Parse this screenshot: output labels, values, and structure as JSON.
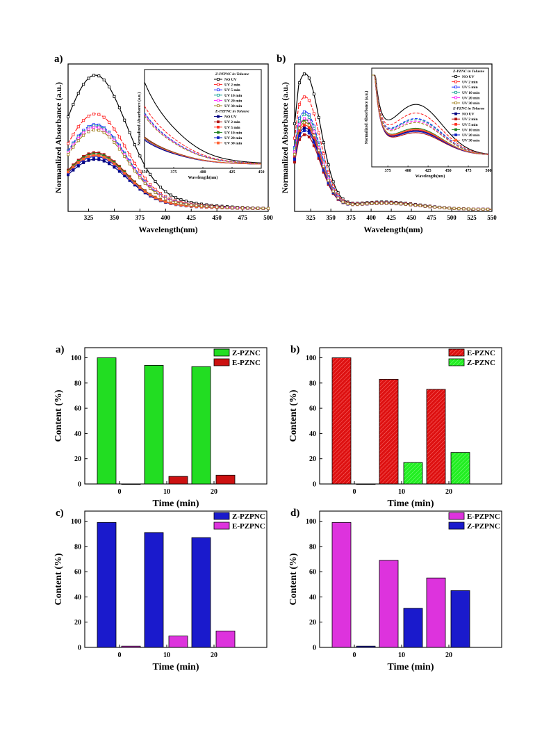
{
  "spectra_common": {
    "ylabel": "Normanlized Absorbance (a.u.)",
    "xlabel": "Wavelength(nm)",
    "inset_xlabel": "Wavelength(nm)",
    "inset_ylabel": "Normalized Absorbance (a.u.)",
    "legend_labels": [
      "NO UV",
      "UV 2 min",
      "UV 5 min",
      "UV 10 min",
      "UV 20 min",
      "UV 30 min"
    ],
    "z_colors": [
      "#000000",
      "#ff2020",
      "#2030ff",
      "#10a090",
      "#ff20ff",
      "#a08020"
    ],
    "e_colors": [
      "#000080",
      "#b01010",
      "#ff3020",
      "#208020",
      "#1020c0",
      "#ff6030"
    ]
  },
  "spectra_a": {
    "panel": "a)",
    "legend_z_title": "Z-PZPNC in Toluene",
    "legend_e_title": "E-PZPNC in Toluene",
    "x_ticks": [
      "325",
      "350",
      "375",
      "400",
      "425",
      "450",
      "475",
      "500"
    ],
    "inset_x_ticks": [
      "350",
      "375",
      "400",
      "425",
      "450"
    ]
  },
  "spectra_b": {
    "panel": "b)",
    "legend_z_title": "Z-PZNC in Toluene",
    "legend_e_title": "E-PZNC in Toluene",
    "x_ticks": [
      "325",
      "350",
      "375",
      "400",
      "425",
      "450",
      "475",
      "500",
      "525",
      "550"
    ],
    "inset_x_ticks": [
      "375",
      "400",
      "425",
      "450",
      "475",
      "500"
    ]
  },
  "chart_data": [
    {
      "type": "line",
      "panel": "a)",
      "xlabel": "Wavelength(nm)",
      "ylabel": "Normanlized Absorbance (a.u.)",
      "xlim": [
        305,
        500
      ],
      "series": [
        {
          "name": "NO UV",
          "peak": 1.0
        },
        {
          "name": "UV 2 min",
          "peak": 0.71
        },
        {
          "name": "UV 5 min",
          "peak": 0.63
        },
        {
          "name": "UV 10 min",
          "peak": 0.62
        },
        {
          "name": "UV 20 min",
          "peak": 0.61
        },
        {
          "name": "UV 30 min",
          "peak": 0.59
        }
      ]
    },
    {
      "type": "line",
      "panel": "b)",
      "xlabel": "Wavelength(nm)",
      "ylabel": "Normanlized Absorbance (a.u.)",
      "xlim": [
        305,
        550
      ],
      "series": [
        {
          "name": "NO UV",
          "peak": 1.0
        },
        {
          "name": "UV 2 min",
          "peak": 0.83
        },
        {
          "name": "UV 5 min",
          "peak": 0.72
        },
        {
          "name": "UV 10 min",
          "peak": 0.7
        },
        {
          "name": "UV 20 min",
          "peak": 0.67
        },
        {
          "name": "UV 30 min",
          "peak": 0.64
        }
      ]
    },
    {
      "type": "bar",
      "panel": "a)",
      "xlabel": "Time (min)",
      "ylabel": "Content (%)",
      "categories": [
        "0",
        "10",
        "20"
      ],
      "ylim": [
        0,
        108
      ],
      "series": [
        {
          "name": "Z-PZNC",
          "values": [
            100,
            94,
            93
          ],
          "color": "#22dd22",
          "hatch": false
        },
        {
          "name": "E-PZNC",
          "values": [
            0,
            6,
            7
          ],
          "color": "#cc1111",
          "hatch": false
        }
      ]
    },
    {
      "type": "bar",
      "panel": "b)",
      "xlabel": "Time (min)",
      "ylabel": "Content (%)",
      "categories": [
        "0",
        "10",
        "20"
      ],
      "ylim": [
        0,
        108
      ],
      "series": [
        {
          "name": "E-PZNC",
          "values": [
            100,
            83,
            75
          ],
          "color": "#dd1111",
          "hatch": true
        },
        {
          "name": "Z-PZNC",
          "values": [
            0,
            17,
            25
          ],
          "color": "#22ee22",
          "hatch": true
        }
      ]
    },
    {
      "type": "bar",
      "panel": "c)",
      "xlabel": "Time (min)",
      "ylabel": "Content (%)",
      "categories": [
        "0",
        "10",
        "20"
      ],
      "ylim": [
        0,
        108
      ],
      "series": [
        {
          "name": "Z-PZPNC",
          "values": [
            99,
            91,
            87
          ],
          "color": "#1a1acc",
          "hatch": false
        },
        {
          "name": "E-PZPNC",
          "values": [
            1,
            9,
            13
          ],
          "color": "#dd33dd",
          "hatch": false
        }
      ]
    },
    {
      "type": "bar",
      "panel": "d)",
      "xlabel": "Time (min)",
      "ylabel": "Content (%)",
      "categories": [
        "0",
        "10",
        "20"
      ],
      "ylim": [
        0,
        108
      ],
      "series": [
        {
          "name": "E-PZPNC",
          "values": [
            99,
            69,
            55
          ],
          "color": "#dd33dd",
          "hatch": false
        },
        {
          "name": "Z-PZPNC",
          "values": [
            1,
            31,
            45
          ],
          "color": "#1a1acc",
          "hatch": false
        }
      ]
    }
  ]
}
